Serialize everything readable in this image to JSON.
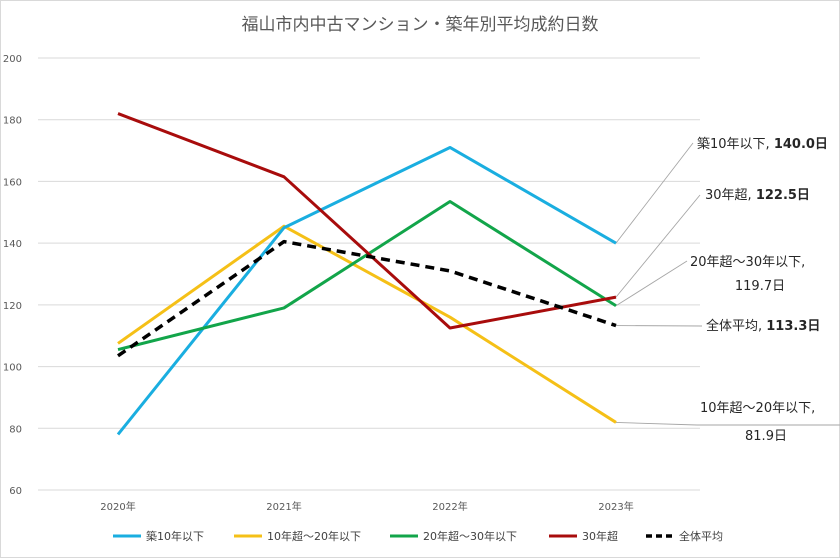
{
  "chart_data": {
    "type": "line",
    "title": "福山市内中古マンション・築年別平均成約日数",
    "xlabel": "",
    "ylabel": "",
    "categories": [
      "2020年",
      "2021年",
      "2022年",
      "2023年"
    ],
    "ylim": [
      60,
      200
    ],
    "yticks": [
      "60",
      "80",
      "100",
      "120",
      "140",
      "160",
      "180",
      "200"
    ],
    "grid": true,
    "legend_position": "bottom",
    "series": [
      {
        "name": "築10年以下",
        "color": "#1aaee0",
        "dash": false,
        "values": [
          78,
          145,
          171,
          140.0
        ]
      },
      {
        "name": "10年超～20年以下",
        "color": "#f5c017",
        "dash": false,
        "values": [
          107.5,
          145.5,
          116,
          81.9
        ]
      },
      {
        "name": "20年超～30年以下",
        "color": "#12a54a",
        "dash": false,
        "values": [
          105.5,
          119,
          153.5,
          119.7
        ]
      },
      {
        "name": "30年超",
        "color": "#a80c0c",
        "dash": false,
        "values": [
          182,
          161.5,
          112.5,
          122.5
        ]
      },
      {
        "name": "全体平均",
        "color": "#000000",
        "dash": true,
        "values": [
          103.5,
          140.5,
          131,
          113.3
        ]
      }
    ],
    "annotations": [
      {
        "series": "築10年以下",
        "label": "築10年以下, ",
        "value": "140.0日"
      },
      {
        "series": "30年超",
        "label": "30年超, ",
        "value": "122.5日"
      },
      {
        "series": "20年超～30年以下",
        "label": "20年超～30年以下,",
        "value": "119.7日"
      },
      {
        "series": "全体平均",
        "label": "全体平均, ",
        "value": "113.3日"
      },
      {
        "series": "10年超～20年以下",
        "label": "10年超～20年以下,",
        "value": "81.9日"
      }
    ]
  }
}
